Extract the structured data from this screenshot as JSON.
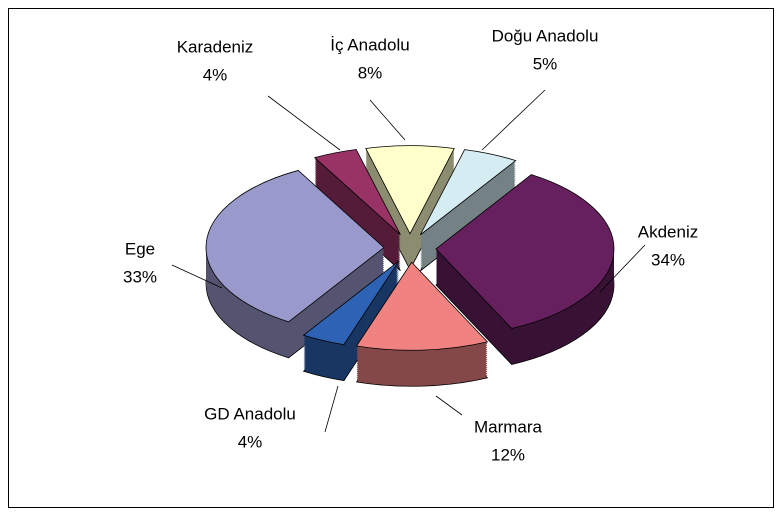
{
  "chart_data": {
    "type": "pie3d",
    "categories": [
      "Doğu Anadolu",
      "Akdeniz",
      "Marmara",
      "GD Anadolu",
      "Ege",
      "Karadeniz",
      "İç Anadolu"
    ],
    "values": [
      5,
      34,
      12,
      4,
      33,
      4,
      8
    ],
    "value_labels": [
      "5%",
      "34%",
      "12%",
      "4%",
      "33%",
      "4%",
      "8%"
    ],
    "colors": [
      "#d4ecf2",
      "#66205e",
      "#f08282",
      "#2e62b4",
      "#9999cc",
      "#993366",
      "#ffffcc"
    ]
  }
}
